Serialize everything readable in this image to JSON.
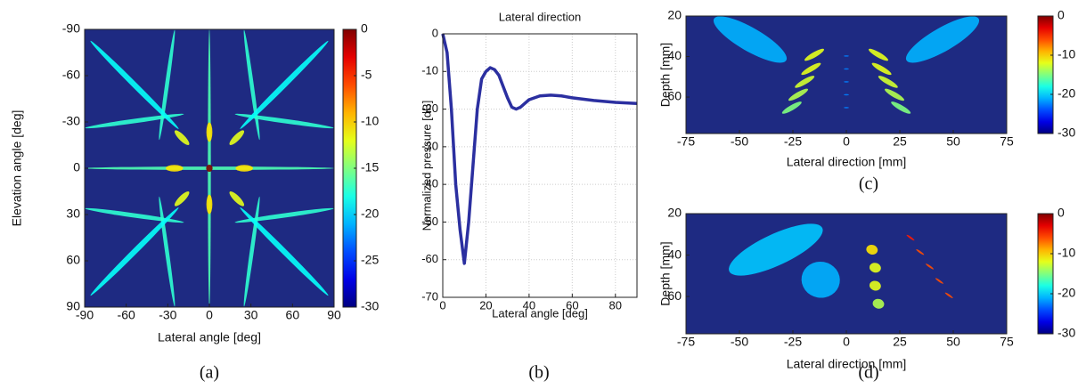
{
  "chart_data": [
    {
      "type": "heatmap",
      "caption": "(a)",
      "xlabel": "Lateral angle [deg]",
      "ylabel": "Elevation angle [deg]",
      "xlim": [
        -90,
        90
      ],
      "xticks": [
        -90,
        -60,
        -30,
        0,
        30,
        60,
        90
      ],
      "ylim": [
        -90,
        90
      ],
      "yticks": [
        -90,
        -60,
        -30,
        0,
        30,
        60,
        90
      ],
      "y_reversed": true,
      "colormap": "jet",
      "colorbar_lim": [
        -30,
        0
      ],
      "colorbar_ticks": [
        0,
        -5,
        -10,
        -15,
        -20,
        -25,
        -30
      ]
    },
    {
      "type": "line",
      "caption": "(b)",
      "title": "Lateral direction",
      "xlabel": "Lateral angle [deg]",
      "ylabel": "Normalized pressure [dB]",
      "xlim": [
        0,
        90
      ],
      "xticks": [
        0,
        20,
        40,
        60,
        80
      ],
      "ylim": [
        -70,
        0
      ],
      "yticks": [
        0,
        -10,
        -20,
        -30,
        -40,
        -50,
        -60,
        -70
      ],
      "grid": true,
      "series": [
        {
          "color": "#2b2fa0",
          "x": [
            0,
            2,
            4,
            6,
            8,
            10,
            12,
            14,
            16,
            18,
            20,
            22,
            24,
            26,
            28,
            30,
            32,
            34,
            36,
            38,
            40,
            45,
            50,
            55,
            60,
            70,
            80,
            90
          ],
          "values": [
            0,
            -5,
            -20,
            -40,
            -52,
            -61,
            -50,
            -35,
            -20,
            -12,
            -10,
            -9,
            -9.5,
            -11,
            -14,
            -17,
            -19.5,
            -20,
            -19.5,
            -18.5,
            -17.5,
            -16.5,
            -16.3,
            -16.5,
            -17,
            -17.7,
            -18.2,
            -18.5
          ]
        }
      ]
    },
    {
      "type": "heatmap",
      "caption": "(c)",
      "xlabel": "Lateral direction [mm]",
      "ylabel": "Depth [mm]",
      "xlim": [
        -75,
        75
      ],
      "xticks": [
        -75,
        -50,
        -25,
        0,
        25,
        50,
        75
      ],
      "ylim": [
        20,
        78
      ],
      "yticks": [
        20,
        40,
        60
      ],
      "y_reversed": true,
      "colormap": "jet",
      "colorbar_lim": [
        -30,
        0
      ],
      "colorbar_ticks": [
        0,
        -10,
        -20,
        -30
      ]
    },
    {
      "type": "heatmap",
      "caption": "(d)",
      "xlabel": "Lateral direction [mm]",
      "ylabel": "Depth [mm]",
      "xlim": [
        -75,
        75
      ],
      "xticks": [
        -75,
        -50,
        -25,
        0,
        25,
        50,
        75
      ],
      "ylim": [
        20,
        78
      ],
      "yticks": [
        20,
        40,
        60
      ],
      "y_reversed": true,
      "colormap": "jet",
      "colorbar_lim": [
        -30,
        0
      ],
      "colorbar_ticks": [
        0,
        -10,
        -20,
        -30
      ]
    }
  ]
}
